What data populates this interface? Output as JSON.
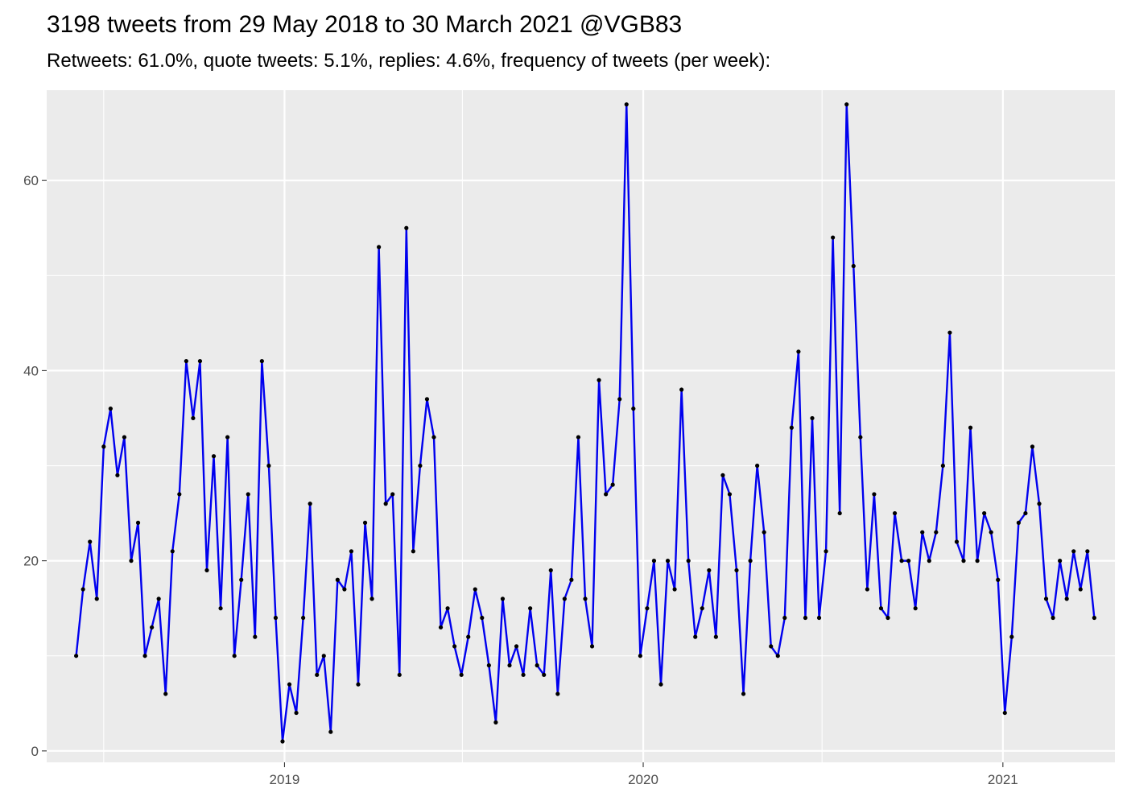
{
  "chart_data": {
    "type": "line",
    "title": "3198 tweets from 29 May 2018 to 30 March 2021 @VGB83",
    "subtitle": "Retweets: 61.0%, quote tweets: 5.1%, replies: 4.6%, frequency of tweets (per week):",
    "xlabel": "",
    "ylabel": "",
    "x_start": "2018-06-03",
    "x_step_days": 7,
    "xlim": [
      "2018-05-04",
      "2021-04-25"
    ],
    "ylim": [
      -1.2,
      69.5
    ],
    "x_ticks": [
      {
        "date": "2019-01-01",
        "label": "2019"
      },
      {
        "date": "2020-01-01",
        "label": "2020"
      },
      {
        "date": "2021-01-01",
        "label": "2021"
      }
    ],
    "y_ticks": [
      0,
      20,
      40,
      60
    ],
    "grid": true,
    "line_color": "#0000ee",
    "point_color": "#000000",
    "panel_color": "#ebebeb",
    "values": [
      10,
      17,
      22,
      16,
      32,
      36,
      29,
      33,
      20,
      24,
      10,
      13,
      16,
      6,
      21,
      27,
      41,
      35,
      41,
      19,
      31,
      15,
      33,
      10,
      18,
      27,
      12,
      41,
      30,
      14,
      1,
      7,
      4,
      14,
      26,
      8,
      10,
      2,
      18,
      17,
      21,
      7,
      24,
      16,
      53,
      26,
      27,
      8,
      55,
      21,
      30,
      37,
      33,
      13,
      15,
      11,
      8,
      12,
      17,
      14,
      9,
      3,
      16,
      9,
      11,
      8,
      15,
      9,
      8,
      19,
      6,
      16,
      18,
      33,
      16,
      11,
      39,
      27,
      28,
      37,
      68,
      36,
      10,
      15,
      20,
      7,
      20,
      17,
      38,
      20,
      12,
      15,
      19,
      12,
      29,
      27,
      19,
      6,
      20,
      30,
      23,
      11,
      10,
      14,
      34,
      42,
      14,
      35,
      14,
      21,
      54,
      25,
      68,
      51,
      33,
      17,
      27,
      15,
      14,
      25,
      20,
      20,
      15,
      23,
      20,
      23,
      30,
      44,
      22,
      20,
      34,
      20,
      25,
      23,
      18,
      4,
      12,
      24,
      25,
      32,
      26,
      16,
      14,
      20,
      16,
      21,
      17,
      21,
      14
    ]
  }
}
